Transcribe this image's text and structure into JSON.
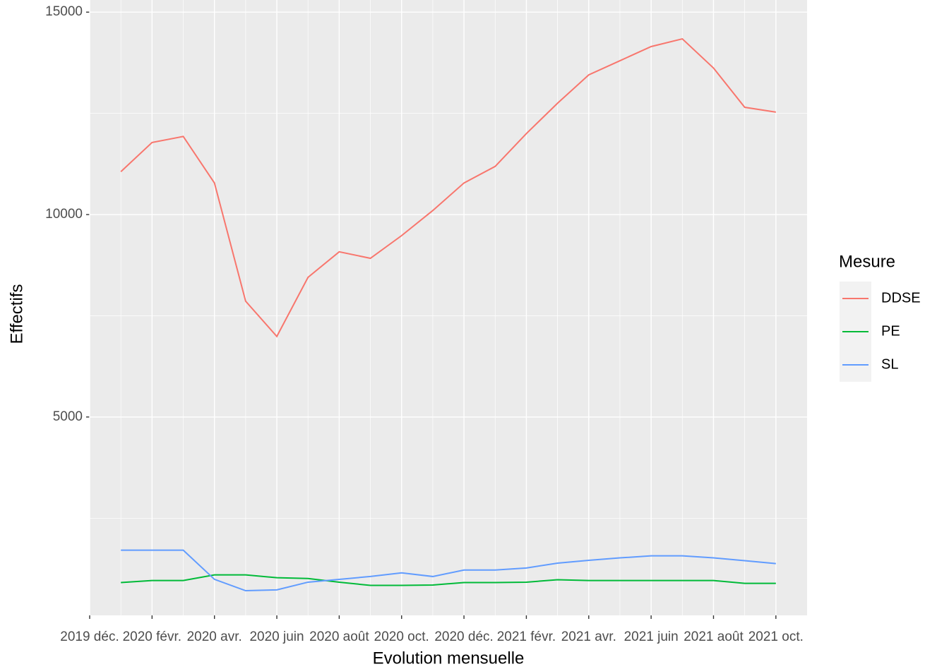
{
  "chart_data": {
    "type": "line",
    "x_label": "Evolution mensuelle",
    "y_label": "Effectifs",
    "legend_title": "Mesure",
    "legend_position": "right",
    "x": [
      "2020-01",
      "2020-02",
      "2020-03",
      "2020-04",
      "2020-05",
      "2020-06",
      "2020-07",
      "2020-08",
      "2020-09",
      "2020-10",
      "2020-11",
      "2020-12",
      "2021-01",
      "2021-02",
      "2021-03",
      "2021-04",
      "2021-05",
      "2021-06",
      "2021-07",
      "2021-08",
      "2021-09",
      "2021-10"
    ],
    "series": [
      {
        "name": "DDSE",
        "color": "#F8766D",
        "values": [
          11060,
          11780,
          11930,
          10780,
          7860,
          6990,
          8450,
          9080,
          8920,
          9480,
          10100,
          10780,
          11190,
          12000,
          12750,
          13450,
          13800,
          14150,
          14340,
          13620,
          12650,
          12530
        ]
      },
      {
        "name": "PE",
        "color": "#00BA38",
        "values": [
          910,
          960,
          960,
          1100,
          1100,
          1030,
          1010,
          920,
          840,
          840,
          850,
          910,
          910,
          920,
          980,
          960,
          960,
          960,
          960,
          960,
          890,
          890
        ]
      },
      {
        "name": "SL",
        "color": "#619CFF",
        "values": [
          1710,
          1710,
          1710,
          990,
          710,
          730,
          920,
          990,
          1060,
          1150,
          1060,
          1220,
          1220,
          1270,
          1390,
          1460,
          1520,
          1570,
          1570,
          1520,
          1450,
          1380
        ]
      }
    ],
    "xlim": [
      "2019-12",
      "2021-11"
    ],
    "xticks": [
      {
        "value": "2019-12",
        "label": "2019 déc."
      },
      {
        "value": "2020-02",
        "label": "2020 févr."
      },
      {
        "value": "2020-04",
        "label": "2020 avr."
      },
      {
        "value": "2020-06",
        "label": "2020 juin"
      },
      {
        "value": "2020-08",
        "label": "2020 août"
      },
      {
        "value": "2020-10",
        "label": "2020 oct."
      },
      {
        "value": "2020-12",
        "label": "2020 déc."
      },
      {
        "value": "2021-02",
        "label": "2021 févr."
      },
      {
        "value": "2021-04",
        "label": "2021 avr."
      },
      {
        "value": "2021-06",
        "label": "2021 juin"
      },
      {
        "value": "2021-08",
        "label": "2021 août"
      },
      {
        "value": "2021-10",
        "label": "2021 oct."
      }
    ],
    "ylim": [
      100,
      15300
    ],
    "yticks": [
      5000,
      10000,
      15000
    ],
    "grid": true
  }
}
